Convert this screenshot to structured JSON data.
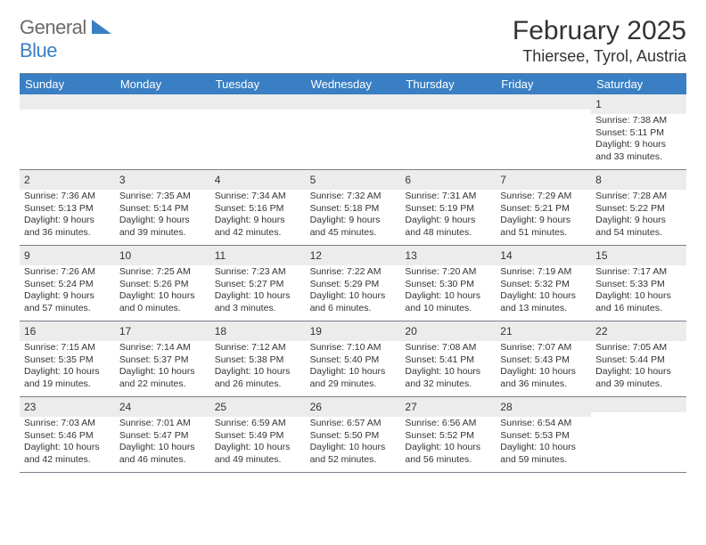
{
  "logo": {
    "general": "General",
    "blue": "Blue"
  },
  "title": "February 2025",
  "location": "Thiersee, Tyrol, Austria",
  "colors": {
    "header_bg": "#3a7fc4",
    "header_text": "#ffffff",
    "daynum_bg": "#ececec",
    "text": "#333333",
    "logo_gray": "#6b6b6b",
    "logo_blue": "#3a7fc4",
    "rule": "#76808a"
  },
  "typography": {
    "title_fontsize": 30,
    "location_fontsize": 18,
    "header_fontsize": 13,
    "daynum_fontsize": 12,
    "body_fontsize": 10.5
  },
  "day_names": [
    "Sunday",
    "Monday",
    "Tuesday",
    "Wednesday",
    "Thursday",
    "Friday",
    "Saturday"
  ],
  "weeks": [
    [
      null,
      null,
      null,
      null,
      null,
      null,
      {
        "n": "1",
        "sunrise": "7:38 AM",
        "sunset": "5:11 PM",
        "daylight": "9 hours and 33 minutes."
      }
    ],
    [
      {
        "n": "2",
        "sunrise": "7:36 AM",
        "sunset": "5:13 PM",
        "daylight": "9 hours and 36 minutes."
      },
      {
        "n": "3",
        "sunrise": "7:35 AM",
        "sunset": "5:14 PM",
        "daylight": "9 hours and 39 minutes."
      },
      {
        "n": "4",
        "sunrise": "7:34 AM",
        "sunset": "5:16 PM",
        "daylight": "9 hours and 42 minutes."
      },
      {
        "n": "5",
        "sunrise": "7:32 AM",
        "sunset": "5:18 PM",
        "daylight": "9 hours and 45 minutes."
      },
      {
        "n": "6",
        "sunrise": "7:31 AM",
        "sunset": "5:19 PM",
        "daylight": "9 hours and 48 minutes."
      },
      {
        "n": "7",
        "sunrise": "7:29 AM",
        "sunset": "5:21 PM",
        "daylight": "9 hours and 51 minutes."
      },
      {
        "n": "8",
        "sunrise": "7:28 AM",
        "sunset": "5:22 PM",
        "daylight": "9 hours and 54 minutes."
      }
    ],
    [
      {
        "n": "9",
        "sunrise": "7:26 AM",
        "sunset": "5:24 PM",
        "daylight": "9 hours and 57 minutes."
      },
      {
        "n": "10",
        "sunrise": "7:25 AM",
        "sunset": "5:26 PM",
        "daylight": "10 hours and 0 minutes."
      },
      {
        "n": "11",
        "sunrise": "7:23 AM",
        "sunset": "5:27 PM",
        "daylight": "10 hours and 3 minutes."
      },
      {
        "n": "12",
        "sunrise": "7:22 AM",
        "sunset": "5:29 PM",
        "daylight": "10 hours and 6 minutes."
      },
      {
        "n": "13",
        "sunrise": "7:20 AM",
        "sunset": "5:30 PM",
        "daylight": "10 hours and 10 minutes."
      },
      {
        "n": "14",
        "sunrise": "7:19 AM",
        "sunset": "5:32 PM",
        "daylight": "10 hours and 13 minutes."
      },
      {
        "n": "15",
        "sunrise": "7:17 AM",
        "sunset": "5:33 PM",
        "daylight": "10 hours and 16 minutes."
      }
    ],
    [
      {
        "n": "16",
        "sunrise": "7:15 AM",
        "sunset": "5:35 PM",
        "daylight": "10 hours and 19 minutes."
      },
      {
        "n": "17",
        "sunrise": "7:14 AM",
        "sunset": "5:37 PM",
        "daylight": "10 hours and 22 minutes."
      },
      {
        "n": "18",
        "sunrise": "7:12 AM",
        "sunset": "5:38 PM",
        "daylight": "10 hours and 26 minutes."
      },
      {
        "n": "19",
        "sunrise": "7:10 AM",
        "sunset": "5:40 PM",
        "daylight": "10 hours and 29 minutes."
      },
      {
        "n": "20",
        "sunrise": "7:08 AM",
        "sunset": "5:41 PM",
        "daylight": "10 hours and 32 minutes."
      },
      {
        "n": "21",
        "sunrise": "7:07 AM",
        "sunset": "5:43 PM",
        "daylight": "10 hours and 36 minutes."
      },
      {
        "n": "22",
        "sunrise": "7:05 AM",
        "sunset": "5:44 PM",
        "daylight": "10 hours and 39 minutes."
      }
    ],
    [
      {
        "n": "23",
        "sunrise": "7:03 AM",
        "sunset": "5:46 PM",
        "daylight": "10 hours and 42 minutes."
      },
      {
        "n": "24",
        "sunrise": "7:01 AM",
        "sunset": "5:47 PM",
        "daylight": "10 hours and 46 minutes."
      },
      {
        "n": "25",
        "sunrise": "6:59 AM",
        "sunset": "5:49 PM",
        "daylight": "10 hours and 49 minutes."
      },
      {
        "n": "26",
        "sunrise": "6:57 AM",
        "sunset": "5:50 PM",
        "daylight": "10 hours and 52 minutes."
      },
      {
        "n": "27",
        "sunrise": "6:56 AM",
        "sunset": "5:52 PM",
        "daylight": "10 hours and 56 minutes."
      },
      {
        "n": "28",
        "sunrise": "6:54 AM",
        "sunset": "5:53 PM",
        "daylight": "10 hours and 59 minutes."
      },
      null
    ]
  ],
  "labels": {
    "sunrise": "Sunrise:",
    "sunset": "Sunset:",
    "daylight": "Daylight:"
  }
}
